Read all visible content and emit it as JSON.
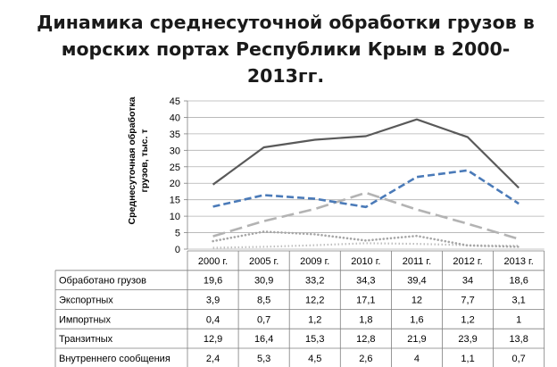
{
  "title_lines": [
    "Динамика среднесуточной обработки грузов в",
    "морских портах Республики Крым в 2000-",
    "2013гг."
  ],
  "chart_data": {
    "type": "line",
    "title": "Динамика среднесуточной обработки грузов в морских портах Республики Крым в 2000-2013гг.",
    "ylabel_lines": [
      "Среднесуточная обработка",
      "грузов, тыс. т"
    ],
    "xlabel": "",
    "ylim": [
      0,
      45
    ],
    "yticks": [
      0,
      5,
      10,
      15,
      20,
      25,
      30,
      35,
      40,
      45
    ],
    "grid": true,
    "legend": "data-table-below",
    "categories": [
      "2000 г.",
      "2005 г.",
      "2009 г.",
      "2010 г.",
      "2011 г.",
      "2012 г.",
      "2013 г."
    ],
    "series": [
      {
        "name": "Обработано грузов",
        "values": [
          19.6,
          30.9,
          33.2,
          34.3,
          39.4,
          34,
          18.6
        ],
        "labels": [
          "19,6",
          "30,9",
          "33,2",
          "34,3",
          "39,4",
          "34",
          "18,6"
        ],
        "color": "#595959",
        "dash": "solid"
      },
      {
        "name": "Экспортных",
        "values": [
          3.9,
          8.5,
          12.2,
          17.1,
          12,
          7.7,
          3.1
        ],
        "labels": [
          "3,9",
          "8,5",
          "12,2",
          "17,1",
          "12",
          "7,7",
          "3,1"
        ],
        "color": "#b3b3b3",
        "dash": "long-dash"
      },
      {
        "name": "Импортных",
        "values": [
          0.4,
          0.7,
          1.2,
          1.8,
          1.6,
          1.2,
          1
        ],
        "labels": [
          "0,4",
          "0,7",
          "1,2",
          "1,8",
          "1,6",
          "1,2",
          "1"
        ],
        "color": "#bfbfbf",
        "dash": "dotted"
      },
      {
        "name": "Транзитных",
        "values": [
          12.9,
          16.4,
          15.3,
          12.8,
          21.9,
          23.9,
          13.8
        ],
        "labels": [
          "12,9",
          "16,4",
          "15,3",
          "12,8",
          "21,9",
          "23,9",
          "13,8"
        ],
        "color": "#4a7ab8",
        "dash": "dash"
      },
      {
        "name": "Внутреннего сообщения",
        "values": [
          2.4,
          5.3,
          4.5,
          2.6,
          4,
          1.1,
          0.7
        ],
        "labels": [
          "2,4",
          "5,3",
          "4,5",
          "2,6",
          "4",
          "1,1",
          "0,7"
        ],
        "color": "#a6a6a6",
        "dash": "round-dot"
      }
    ]
  }
}
